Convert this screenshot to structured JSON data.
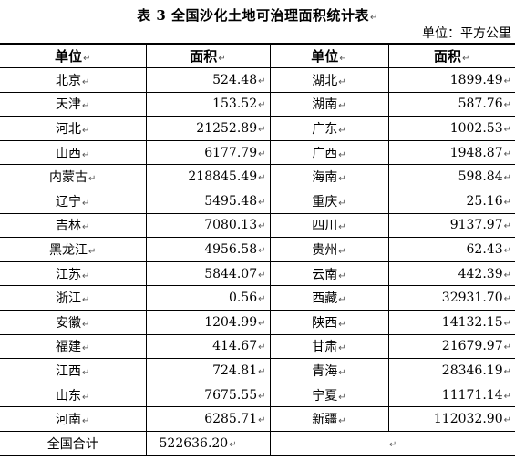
{
  "title": "表 3   全国沙化土地可治理面积统计表",
  "edit_mark": "↵",
  "unit_note": "单位：平方公里",
  "headers": {
    "unit_left": "单位",
    "area_left": "面积",
    "unit_right": "单位",
    "area_right": "面积"
  },
  "rows": [
    {
      "left_unit": "北京",
      "left_area": "524.48",
      "right_unit": "湖北",
      "right_area": "1899.49"
    },
    {
      "left_unit": "天津",
      "left_area": "153.52",
      "right_unit": "湖南",
      "right_area": "587.76"
    },
    {
      "left_unit": "河北",
      "left_area": "21252.89",
      "right_unit": "广东",
      "right_area": "1002.53"
    },
    {
      "left_unit": "山西",
      "left_area": "6177.79",
      "right_unit": "广西",
      "right_area": "1948.87"
    },
    {
      "left_unit": "内蒙古",
      "left_area": "218845.49",
      "right_unit": "海南",
      "right_area": "598.84"
    },
    {
      "left_unit": "辽宁",
      "left_area": "5495.48",
      "right_unit": "重庆",
      "right_area": "25.16"
    },
    {
      "left_unit": "吉林",
      "left_area": "7080.13",
      "right_unit": "四川",
      "right_area": "9137.97"
    },
    {
      "left_unit": "黑龙江",
      "left_area": "4956.58",
      "right_unit": "贵州",
      "right_area": "62.43"
    },
    {
      "left_unit": "江苏",
      "left_area": "5844.07",
      "right_unit": "云南",
      "right_area": "442.39"
    },
    {
      "left_unit": "浙江",
      "left_area": "0.56",
      "right_unit": "西藏",
      "right_area": "32931.70"
    },
    {
      "left_unit": "安徽",
      "left_area": "1204.99",
      "right_unit": "陕西",
      "right_area": "14132.15"
    },
    {
      "left_unit": "福建",
      "left_area": "414.67",
      "right_unit": "甘肃",
      "right_area": "21679.97"
    },
    {
      "left_unit": "江西",
      "left_area": "724.81",
      "right_unit": "青海",
      "right_area": "28346.19"
    },
    {
      "left_unit": "山东",
      "left_area": "7675.55",
      "right_unit": "宁夏",
      "right_area": "11171.14"
    },
    {
      "left_unit": "河南",
      "left_area": "6285.71",
      "right_unit": "新疆",
      "right_area": "112032.90"
    }
  ],
  "total": {
    "label": "全国合计",
    "value": "522636.20"
  }
}
